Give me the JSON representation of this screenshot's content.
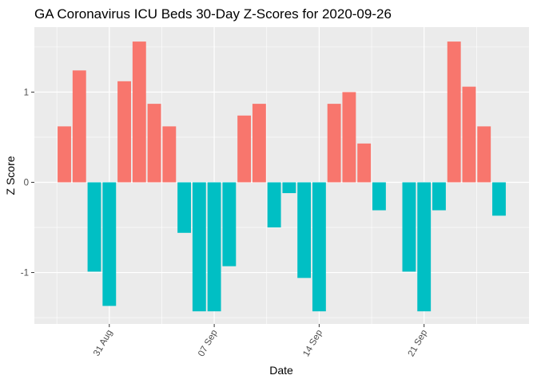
{
  "chart_data": {
    "type": "bar",
    "title": "GA Coronavirus ICU Beds 30-Day Z-Scores for 2020-09-26",
    "xlabel": "Date",
    "ylabel": "Z Score",
    "x_ticks": [
      {
        "date": "2020-08-31",
        "label": "31 Aug"
      },
      {
        "date": "2020-09-07",
        "label": "07 Sep"
      },
      {
        "date": "2020-09-14",
        "label": "14 Sep"
      },
      {
        "date": "2020-09-21",
        "label": "21 Sep"
      }
    ],
    "y_ticks": [
      -1,
      0,
      1
    ],
    "y_tick_labels": [
      "-1",
      "0",
      "1"
    ],
    "ylim": [
      -1.57,
      1.72
    ],
    "xlim": [
      "2020-08-26",
      "2020-09-28"
    ],
    "grid": true,
    "legend": "none",
    "colors": {
      "positive": "#F8766D",
      "negative": "#00BFC4",
      "panel": "#EBEBEB",
      "grid": "#FFFFFF"
    },
    "dates": [
      "2020-08-28",
      "2020-08-29",
      "2020-08-30",
      "2020-08-31",
      "2020-09-01",
      "2020-09-02",
      "2020-09-03",
      "2020-09-04",
      "2020-09-05",
      "2020-09-06",
      "2020-09-07",
      "2020-09-08",
      "2020-09-09",
      "2020-09-10",
      "2020-09-11",
      "2020-09-12",
      "2020-09-13",
      "2020-09-14",
      "2020-09-15",
      "2020-09-16",
      "2020-09-17",
      "2020-09-18",
      "2020-09-19",
      "2020-09-20",
      "2020-09-21",
      "2020-09-22",
      "2020-09-23",
      "2020-09-24",
      "2020-09-25",
      "2020-09-26"
    ],
    "values": [
      0.62,
      1.24,
      -0.99,
      -1.37,
      1.12,
      1.56,
      0.87,
      0.62,
      -0.56,
      -1.43,
      -1.43,
      -0.93,
      0.74,
      0.87,
      -0.5,
      -0.12,
      -1.06,
      -1.43,
      0.87,
      1.0,
      0.43,
      -0.31,
      null,
      -0.99,
      -1.43,
      -0.31,
      1.56,
      1.06,
      0.62,
      -0.37
    ]
  }
}
